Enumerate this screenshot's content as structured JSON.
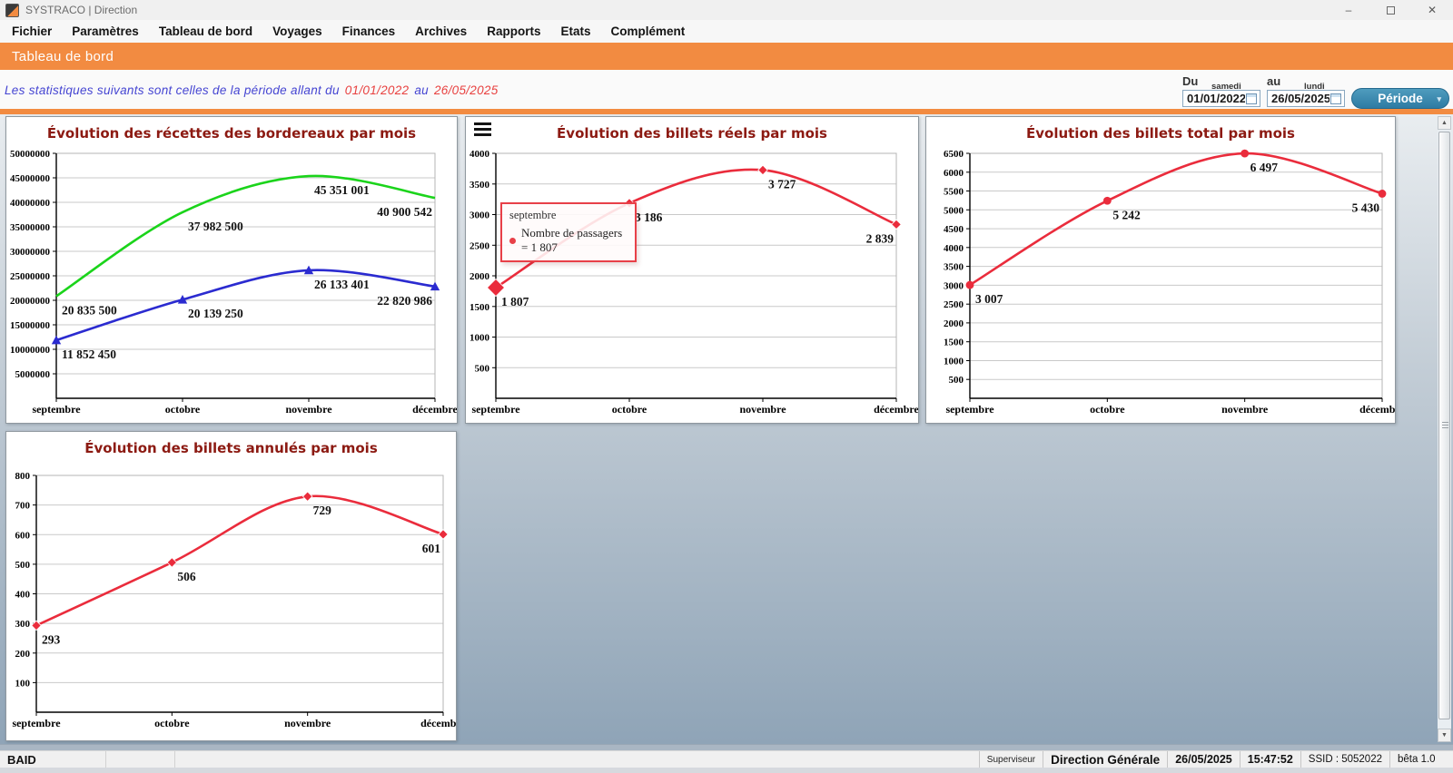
{
  "window": {
    "title": "SYSTRACO | Direction"
  },
  "menu": {
    "items": [
      "Fichier",
      "Paramètres",
      "Tableau de bord",
      "Voyages",
      "Finances",
      "Archives",
      "Rapports",
      "Etats",
      "Complément"
    ]
  },
  "banner": {
    "title": "Tableau de bord"
  },
  "period_bar": {
    "statement": "Les statistiques suivants sont celles de la période allant du",
    "statement_from": "01/01/2022",
    "statement_connector": "au",
    "statement_to": "26/05/2025",
    "du_label": "Du",
    "au_label": "au",
    "from_weekday": "samedi",
    "to_weekday": "lundi",
    "from_value": "01/01/2022",
    "to_value": "26/05/2025",
    "period_button_label": "Période"
  },
  "icons": {
    "minimize": "–",
    "close": "✕",
    "dropdown": "▾",
    "scroll_up": "▲",
    "scroll_down": "▼"
  },
  "colors": {
    "accent_orange": "#F28B41",
    "button_blue": "#3583AB",
    "line_green": "#1BD41B",
    "line_blue": "#2B2BD0",
    "line_red": "#EA2C3C",
    "chart_title": "#8C1A12",
    "stats_text_blue": "#4545D2",
    "stats_date_red": "#E8403F"
  },
  "status_bar": {
    "user_code": "BAID",
    "role": "Superviseur",
    "department": "Direction Générale",
    "date": "26/05/2025",
    "time": "15:47:52",
    "ssid": "SSID : 5052022",
    "version": "bêta 1.0"
  },
  "chart_data": [
    {
      "type": "line",
      "title": "Évolution des récettes des bordereaux par mois",
      "categories": [
        "septembre",
        "octobre",
        "novembre",
        "décembre"
      ],
      "ylim": [
        0,
        50000000
      ],
      "ytick_step": 5000000,
      "grid": true,
      "legend": "none",
      "series": [
        {
          "name": "recettes-serie-verte",
          "color": "#1BD41B",
          "marker": "none",
          "values": [
            20835500,
            37982500,
            45351001,
            40900542
          ],
          "labels": [
            "20 835 500",
            "37 982 500",
            "45 351 001",
            "40 900 542"
          ]
        },
        {
          "name": "recettes-serie-bleue",
          "color": "#2B2BD0",
          "marker": "triangle",
          "values": [
            11852450,
            20139250,
            26133401,
            22820986
          ],
          "labels": [
            "11 852 450",
            "20 139 250",
            "26 133 401",
            "22 820 986"
          ]
        }
      ]
    },
    {
      "type": "line",
      "title": "Évolution des billets réels par mois",
      "categories": [
        "septembre",
        "octobre",
        "novembre",
        "décembre"
      ],
      "ylim": [
        0,
        4000
      ],
      "ytick_step": 500,
      "grid": true,
      "legend": "none",
      "series": [
        {
          "name": "billets-reels",
          "color": "#EA2C3C",
          "marker": "diamond",
          "highlight_index": 0,
          "values": [
            1807,
            3186,
            3727,
            2839
          ],
          "labels": [
            "1 807",
            "3 186",
            "3 727",
            "2 839"
          ]
        }
      ],
      "tooltip": {
        "title": "septembre",
        "text": "Nombre de passagers = 1 807"
      }
    },
    {
      "type": "line",
      "title": "Évolution des billets total par mois",
      "categories": [
        "septembre",
        "octobre",
        "novembre",
        "décembre"
      ],
      "ylim": [
        0,
        6500
      ],
      "ytick_step": 500,
      "grid": true,
      "legend": "none",
      "series": [
        {
          "name": "billets-total",
          "color": "#EA2C3C",
          "marker": "circle",
          "values": [
            3007,
            5242,
            6497,
            5430
          ],
          "labels": [
            "3 007",
            "5 242",
            "6 497",
            "5 430"
          ]
        }
      ]
    },
    {
      "type": "line",
      "title": "Évolution des billets annulés par mois",
      "categories": [
        "septembre",
        "octobre",
        "novembre",
        "décembre"
      ],
      "ylim": [
        0,
        800
      ],
      "ytick_step": 100,
      "grid": true,
      "legend": "none",
      "series": [
        {
          "name": "billets-annules",
          "color": "#EA2C3C",
          "marker": "diamond",
          "values": [
            293,
            506,
            729,
            601
          ],
          "labels": [
            "293",
            "506",
            "729",
            "601"
          ]
        }
      ]
    }
  ]
}
